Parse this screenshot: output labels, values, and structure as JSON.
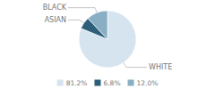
{
  "chart_data": {
    "type": "pie",
    "categories": [
      "WHITE",
      "ASIAN",
      "BLACK"
    ],
    "values": [
      81.2,
      6.8,
      12.0
    ],
    "value_labels": [
      "81.2%",
      "6.8%",
      "12.0%"
    ],
    "colors": [
      "#d6e4ef",
      "#2d5f7a",
      "#8aafc4"
    ],
    "legend": "bottom"
  }
}
